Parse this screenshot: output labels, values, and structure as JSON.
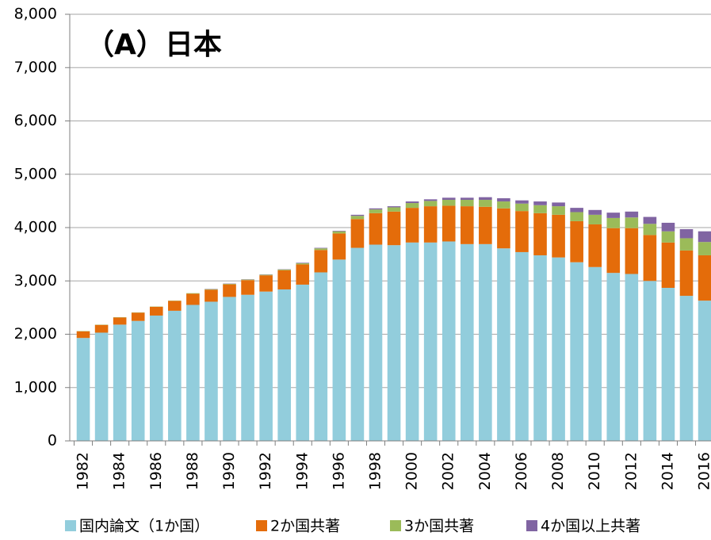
{
  "chart_data": {
    "type": "stacked_bar",
    "title": "（A）日本",
    "categories": [
      "1982",
      null,
      "1984",
      null,
      "1986",
      null,
      "1988",
      null,
      "1990",
      null,
      "1992",
      null,
      "1994",
      null,
      "1996",
      null,
      "1998",
      null,
      "2000",
      null,
      "2002",
      null,
      "2004",
      null,
      "2006",
      null,
      "2008",
      null,
      "2010",
      null,
      "2012",
      null,
      "2014",
      null,
      "2016"
    ],
    "series": [
      {
        "name": "国内論文（1か国）",
        "color": "#92cddc",
        "values": [
          1930,
          2030,
          2180,
          2250,
          2350,
          2440,
          2550,
          2610,
          2700,
          2740,
          2800,
          2840,
          2930,
          3160,
          3400,
          3620,
          3680,
          3670,
          3720,
          3720,
          3740,
          3690,
          3690,
          3610,
          3540,
          3480,
          3440,
          3350,
          3260,
          3150,
          3130,
          3000,
          2870,
          2720,
          2630
        ]
      },
      {
        "name": "2か国共著",
        "color": "#e46c0a",
        "values": [
          125,
          145,
          135,
          155,
          165,
          185,
          210,
          225,
          235,
          275,
          305,
          360,
          380,
          420,
          490,
          540,
          590,
          630,
          650,
          680,
          670,
          710,
          700,
          750,
          770,
          790,
          800,
          770,
          800,
          840,
          860,
          860,
          850,
          850,
          850
        ]
      },
      {
        "name": "3か国共著",
        "color": "#9bbb59",
        "values": [
          5,
          5,
          5,
          5,
          5,
          5,
          10,
          10,
          10,
          10,
          10,
          15,
          20,
          30,
          40,
          60,
          70,
          80,
          90,
          100,
          110,
          120,
          130,
          130,
          140,
          150,
          160,
          170,
          180,
          190,
          200,
          210,
          210,
          230,
          250
        ]
      },
      {
        "name": "4か国以上共著",
        "color": "#8064a2",
        "values": [
          0,
          0,
          0,
          0,
          0,
          0,
          0,
          5,
          5,
          5,
          5,
          5,
          10,
          10,
          10,
          20,
          20,
          20,
          30,
          30,
          40,
          40,
          50,
          60,
          60,
          70,
          70,
          80,
          90,
          100,
          110,
          130,
          160,
          170,
          200
        ]
      }
    ],
    "ylim": [
      0,
      8000
    ],
    "yticks": [
      0,
      {
        "value": 1000,
        "label": "1,000"
      },
      {
        "value": 2000,
        "label": "2,000"
      },
      {
        "value": 3000,
        "label": "3,000"
      },
      {
        "value": 4000,
        "label": "4,000"
      },
      {
        "value": 5000,
        "label": "5,000"
      },
      {
        "value": 6000,
        "label": "6,000"
      },
      {
        "value": 7000,
        "label": "7,000"
      },
      {
        "value": 8000,
        "label": "8,000"
      }
    ],
    "grid": true
  }
}
